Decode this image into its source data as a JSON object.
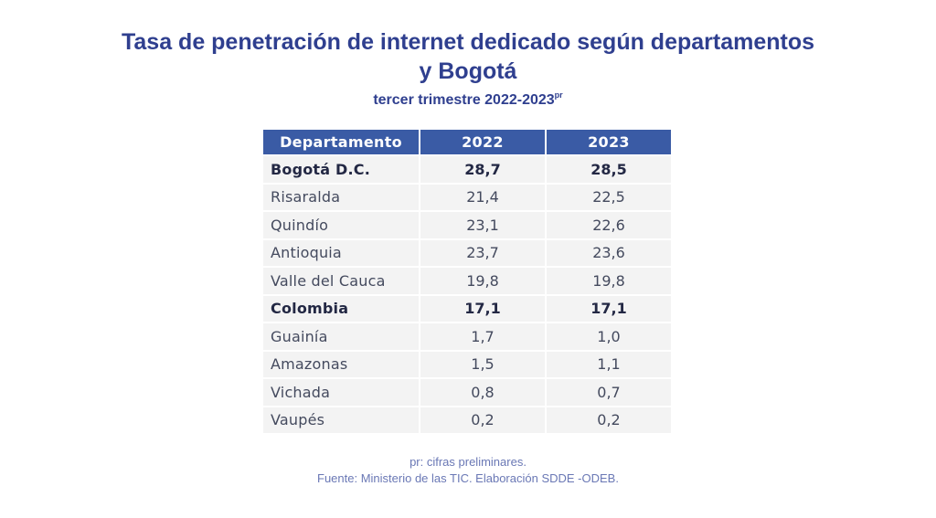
{
  "header": {
    "title_line1": "Tasa de penetración de internet dedicado según departamentos",
    "title_line2": "y Bogotá",
    "subtitle": "tercer trimestre 2022-2023",
    "subtitle_superscript": "pr"
  },
  "table": {
    "columns": [
      "Departamento",
      "2022",
      "2023"
    ],
    "rows": [
      {
        "name": "Bogotá D.C.",
        "v2022": "28,7",
        "v2023": "28,5",
        "bold": true
      },
      {
        "name": "Risaralda",
        "v2022": "21,4",
        "v2023": "22,5",
        "bold": false
      },
      {
        "name": "Quindío",
        "v2022": "23,1",
        "v2023": "22,6",
        "bold": false
      },
      {
        "name": "Antioquia",
        "v2022": "23,7",
        "v2023": "23,6",
        "bold": false
      },
      {
        "name": "Valle del Cauca",
        "v2022": "19,8",
        "v2023": "19,8",
        "bold": false
      },
      {
        "name": "Colombia",
        "v2022": "17,1",
        "v2023": "17,1",
        "bold": true
      },
      {
        "name": "Guainía",
        "v2022": "1,7",
        "v2023": "1,0",
        "bold": false
      },
      {
        "name": "Amazonas",
        "v2022": "1,5",
        "v2023": "1,1",
        "bold": false
      },
      {
        "name": "Vichada",
        "v2022": "0,8",
        "v2023": "0,7",
        "bold": false
      },
      {
        "name": "Vaupés",
        "v2022": "0,2",
        "v2023": "0,2",
        "bold": false
      }
    ]
  },
  "footer": {
    "note": "pr: cifras preliminares.",
    "source": "Fuente: Ministerio de las TIC. Elaboración SDDE -ODEB."
  },
  "colors": {
    "title": "#2f3f8f",
    "header_bg": "#3a5ba5",
    "row_bg": "#f3f3f3",
    "footer_text": "#6a78b5"
  }
}
